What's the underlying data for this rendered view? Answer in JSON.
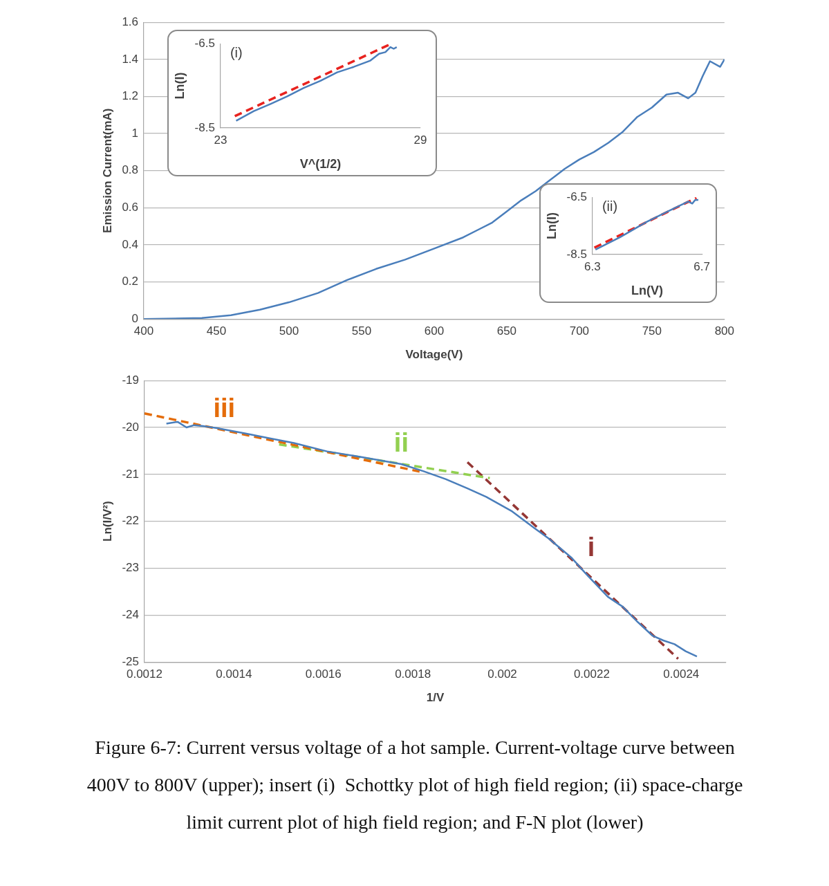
{
  "chart_data": [
    {
      "type": "line",
      "xlabel": "Voltage(V)",
      "ylabel": "Emission Current(mA)",
      "xlim": [
        400,
        800
      ],
      "xticks": [
        400,
        450,
        500,
        550,
        600,
        650,
        700,
        750,
        800
      ],
      "ylim": [
        0,
        1.6
      ],
      "yticks": [
        0,
        0.2,
        0.4,
        0.6,
        0.8,
        1,
        1.2,
        1.4,
        1.6
      ],
      "grid": "y",
      "marker": "none",
      "line_style": "solid",
      "series": [
        {
          "color": "#4a7ebb",
          "x": [
            400,
            440,
            460,
            480,
            500,
            520,
            540,
            560,
            580,
            600,
            620,
            630,
            640,
            650,
            660,
            670,
            680,
            690,
            700,
            710,
            720,
            730,
            740,
            750,
            760,
            768,
            775,
            780,
            785,
            790,
            797,
            800
          ],
          "values": [
            0,
            0.005,
            0.02,
            0.05,
            0.09,
            0.14,
            0.21,
            0.27,
            0.32,
            0.38,
            0.44,
            0.48,
            0.52,
            0.58,
            0.64,
            0.69,
            0.75,
            0.81,
            0.86,
            0.9,
            0.95,
            1.01,
            1.09,
            1.14,
            1.21,
            1.22,
            1.19,
            1.22,
            1.31,
            1.39,
            1.36,
            1.4
          ]
        }
      ]
    },
    {
      "type": "line",
      "xlabel": "V^(1/2)",
      "ylabel": "Ln(I)",
      "annotations": [
        "(i)"
      ],
      "xlim": [
        23,
        29
      ],
      "xticks": [
        23,
        29
      ],
      "ylim": [
        -8.5,
        -6.5
      ],
      "yticks": [
        -8.5,
        -6.5
      ],
      "grid": false,
      "marker": "none",
      "series": [
        {
          "color": "#4a7ebb",
          "line_style": "solid",
          "x": [
            23.47,
            24,
            24.5,
            25,
            25.5,
            26,
            26.5,
            27,
            27.5,
            27.76,
            27.95,
            28.1,
            28.2,
            28.29
          ],
          "values": [
            -8.33,
            -8.1,
            -7.93,
            -7.75,
            -7.55,
            -7.38,
            -7.18,
            -7.05,
            -6.9,
            -6.74,
            -6.7,
            -6.58,
            -6.62,
            -6.58
          ]
        },
        {
          "color": "#e8231f",
          "line_style": "dashed",
          "x": [
            23.43,
            28.1
          ],
          "values": [
            -8.22,
            -6.51
          ]
        }
      ]
    },
    {
      "type": "line",
      "xlabel": "Ln(V)",
      "ylabel": "Ln(I)",
      "annotations": [
        "(ii)"
      ],
      "xlim": [
        6.3,
        6.7
      ],
      "xticks": [
        6.3,
        6.7
      ],
      "ylim": [
        -8.5,
        -6.5
      ],
      "yticks": [
        -8.5,
        -6.5
      ],
      "grid": false,
      "marker": "none",
      "series": [
        {
          "color": "#4a7ebb",
          "line_style": "solid",
          "x": [
            6.311,
            6.4,
            6.5,
            6.6,
            6.65,
            6.665,
            6.675,
            6.687
          ],
          "values": [
            -8.33,
            -7.9,
            -7.35,
            -6.88,
            -6.65,
            -6.72,
            -6.6,
            -6.59
          ]
        },
        {
          "color": "#e8231f",
          "line_style": "dashed",
          "x": [
            6.307,
            6.68
          ],
          "values": [
            -8.26,
            -6.52
          ]
        }
      ]
    },
    {
      "type": "line",
      "xlabel": "1/V",
      "ylabel": "Ln(I/V²)",
      "annotations": [
        "Figure 6-7: Current versus voltage of a hot sample. Current-voltage curve between 400V to 800V (upper); insert (i)  Schottky plot of high field region; (ii) space-charge limit current plot of high field region; and F-N plot (lower)"
      ],
      "xlim": [
        0.0012,
        0.0025
      ],
      "xticks": [
        0.0012,
        0.0014,
        0.0016,
        0.0018,
        0.002,
        0.0022,
        0.0024
      ],
      "ylim": [
        -25,
        -19
      ],
      "yticks": [
        -25,
        -24,
        -23,
        -22,
        -21,
        -20,
        -19
      ],
      "grid": "y",
      "marker": "none",
      "series": [
        {
          "color": "#4a7ebb",
          "line_style": "solid",
          "x": [
            0.001249,
            0.001274,
            0.001294,
            0.001311,
            0.001331,
            0.00136,
            0.001426,
            0.001484,
            0.001534,
            0.001608,
            0.001691,
            0.001774,
            0.001823,
            0.001873,
            0.001922,
            0.001964,
            0.002022,
            0.002071,
            0.002104,
            0.002154,
            0.002187,
            0.002236,
            0.002269,
            0.002303,
            0.002336,
            0.00236,
            0.002385,
            0.00241,
            0.002435
          ],
          "values": [
            -19.92,
            -19.88,
            -20,
            -19.95,
            -19.97,
            -20.01,
            -20.13,
            -20.24,
            -20.33,
            -20.51,
            -20.64,
            -20.78,
            -20.93,
            -21.1,
            -21.3,
            -21.48,
            -21.79,
            -22.14,
            -22.37,
            -22.77,
            -23.12,
            -23.61,
            -23.82,
            -24.15,
            -24.44,
            -24.54,
            -24.62,
            -24.77,
            -24.88
          ]
        },
        {
          "name": "iii",
          "color": "#e46c0a",
          "line_style": "dashed",
          "x": [
            0.0012,
            0.001815
          ],
          "values": [
            -19.7,
            -20.94
          ]
        },
        {
          "name": "ii",
          "color": "#92d050",
          "line_style": "dashed",
          "x": [
            0.001501,
            0.001972
          ],
          "values": [
            -20.36,
            -21.08
          ]
        },
        {
          "name": "i",
          "color": "#953735",
          "line_style": "dashed",
          "x": [
            0.001922,
            0.002393
          ],
          "values": [
            -20.74,
            -24.93
          ]
        }
      ]
    }
  ]
}
